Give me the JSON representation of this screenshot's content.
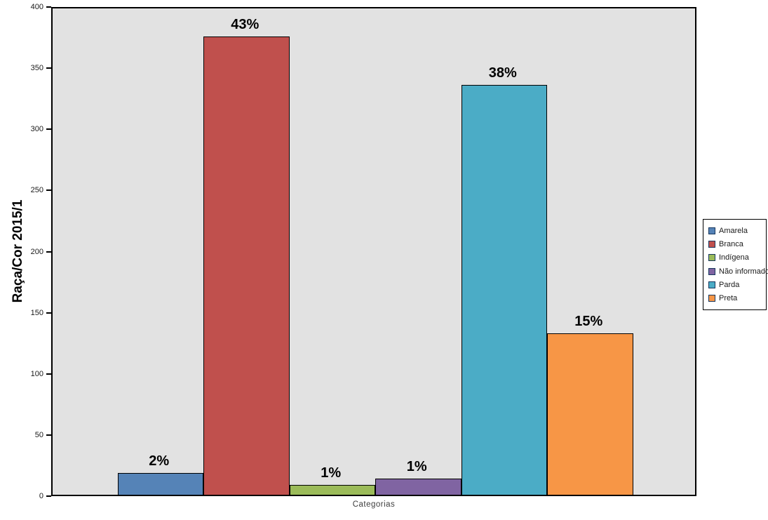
{
  "chart_data": {
    "type": "bar",
    "title": "",
    "ylabel": "Raça/Cor 2015/1",
    "xlabel": "Categorias",
    "ylim": [
      0,
      400
    ],
    "yticks": [
      0,
      50,
      100,
      150,
      200,
      250,
      300,
      350,
      400
    ],
    "grid": false,
    "legend_position": "right",
    "plot_background": "#e2e2e2",
    "bar_border_color": "#000000",
    "categories": [
      "Categorias"
    ],
    "series": [
      {
        "name": "Amarela",
        "value": 18,
        "percent_label": "2%",
        "color": "#5583b7"
      },
      {
        "name": "Branca",
        "value": 375,
        "percent_label": "43%",
        "color": "#c0504d"
      },
      {
        "name": "Indígena",
        "value": 8,
        "percent_label": "1%",
        "color": "#9bbb59"
      },
      {
        "name": "Não informado",
        "value": 13,
        "percent_label": "1%",
        "color": "#8064a2"
      },
      {
        "name": "Parda",
        "value": 335,
        "percent_label": "38%",
        "color": "#4bacc6"
      },
      {
        "name": "Preta",
        "value": 132,
        "percent_label": "15%",
        "color": "#f79646"
      }
    ]
  }
}
